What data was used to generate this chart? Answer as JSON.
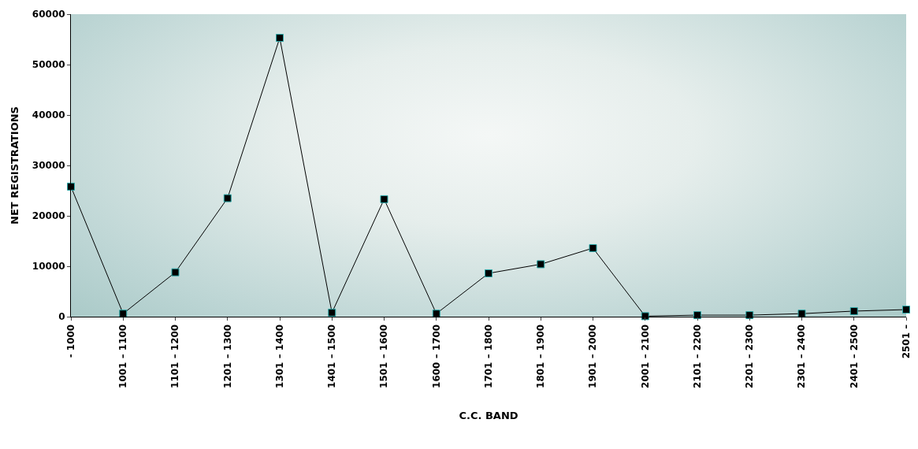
{
  "chart_data": {
    "type": "line",
    "xlabel": "C.C. BAND",
    "ylabel": "NET REGISTRATIONS",
    "categories": [
      "- 1000",
      "1001 – 1100",
      "1101 – 1200",
      "1201 – 1300",
      "1301 – 1400",
      "1401 – 1500",
      "1501 – 1600",
      "1600 – 1700",
      "1701 – 1800",
      "1801 – 1900",
      "1901 – 2000",
      "2001 – 2100",
      "2101 – 2200",
      "2201 – 2300",
      "2301 – 2400",
      "2401 – 2500",
      "2501 –"
    ],
    "series": [
      {
        "color": "#000000",
        "values": [
          25800,
          600,
          8800,
          23500,
          55300,
          800,
          23300,
          600,
          8600,
          10400,
          13600,
          100,
          300,
          300,
          600,
          1100,
          1400
        ]
      }
    ],
    "ylim": [
      0,
      60000
    ],
    "yticks": [
      0,
      10000,
      20000,
      30000,
      40000,
      50000,
      60000
    ],
    "grid": false,
    "marker": "square",
    "line_style": "solid"
  }
}
